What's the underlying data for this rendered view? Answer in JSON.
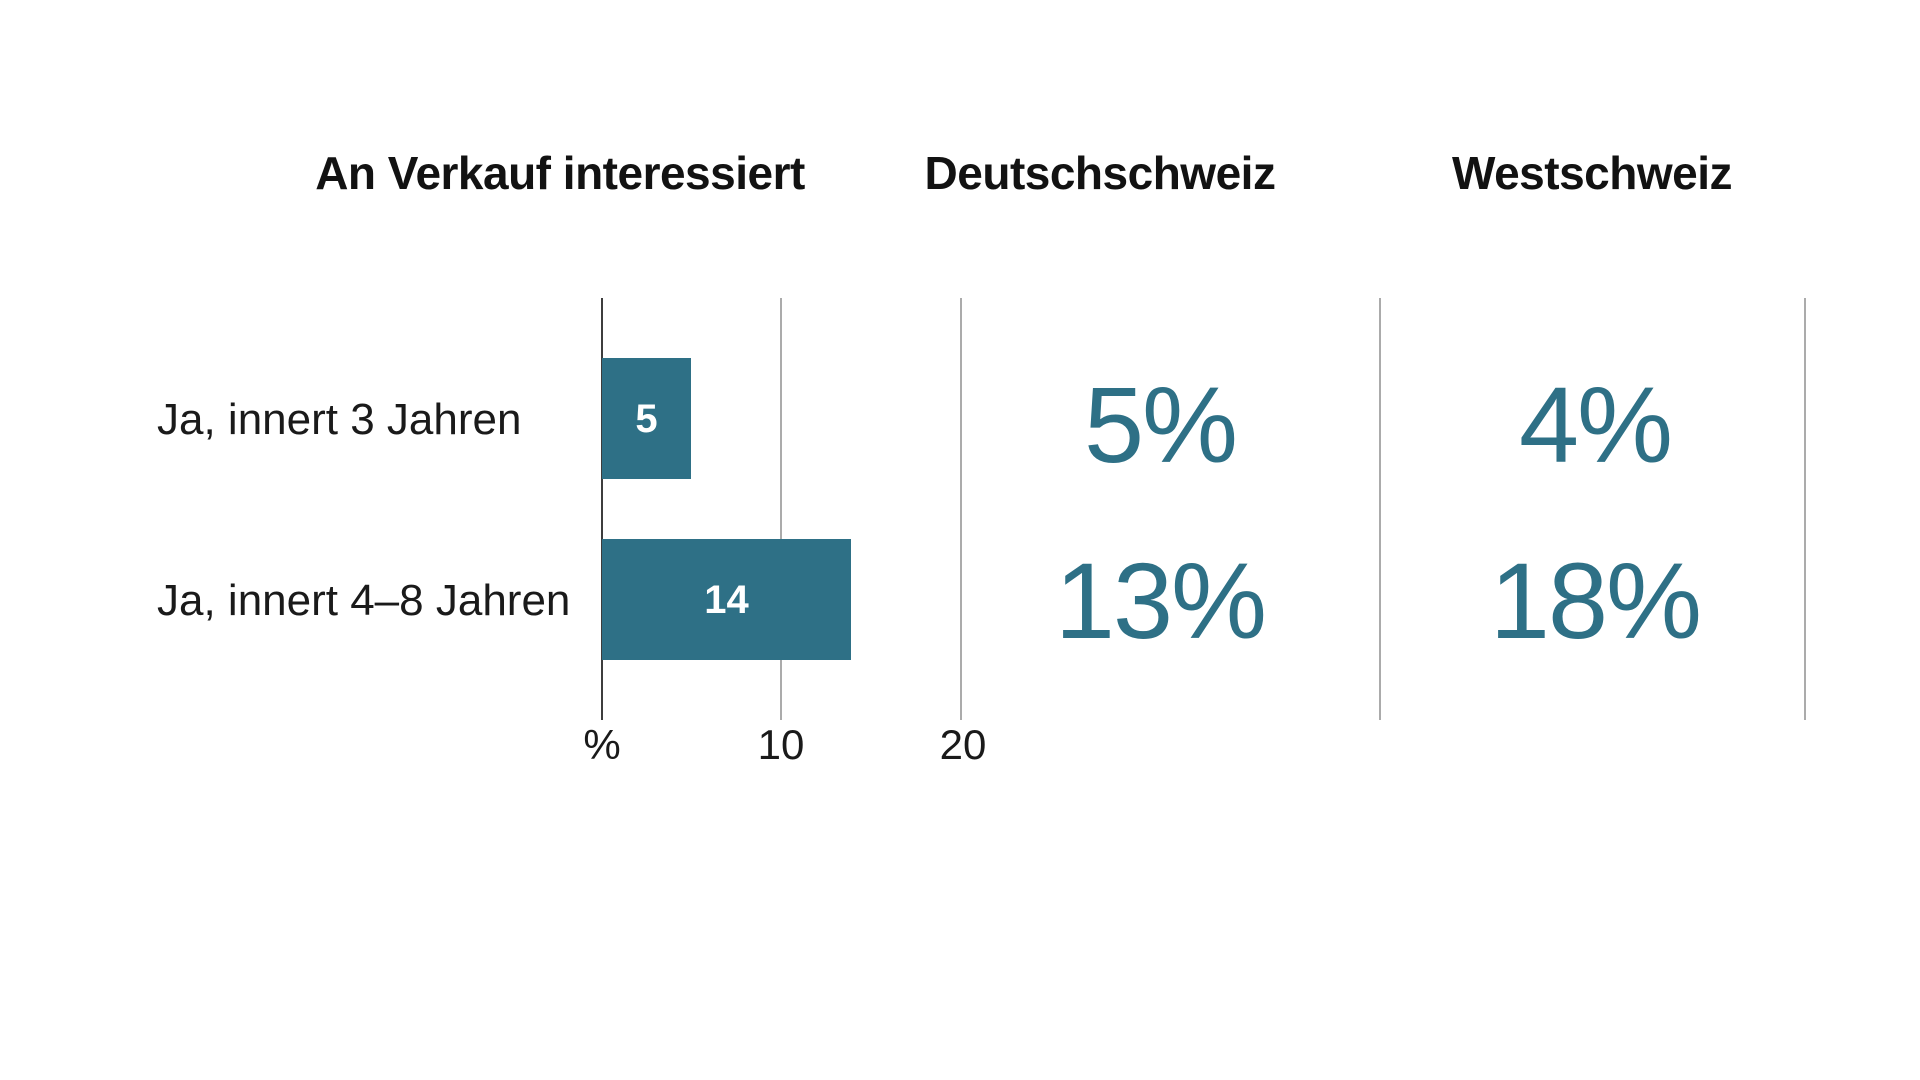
{
  "headers": {
    "chart": "An Verkauf interessiert",
    "col_de": "Deutschschweiz",
    "col_west": "Westschweiz"
  },
  "rows": [
    {
      "label": "Ja, innert 3 Jahren",
      "bar_label": "5",
      "de": "5%",
      "west": "4%"
    },
    {
      "label": "Ja, innert 4–8 Jahren",
      "bar_label": "14",
      "de": "13%",
      "west": "18%"
    }
  ],
  "axis": {
    "ticks": [
      "%",
      "10",
      "20"
    ]
  },
  "colors": {
    "accent_teal": "#2e7086",
    "bar_value_text": "#ffffff",
    "grid_line": "#ababab",
    "zero_axis_line": "#3d3d3d",
    "text": "#121212"
  },
  "chart_data": {
    "type": "bar",
    "orientation": "horizontal",
    "title": "An Verkauf interessiert",
    "categories": [
      "Ja, innert 3 Jahren",
      "Ja, innert 4–8 Jahren"
    ],
    "series": [
      {
        "name": "An Verkauf interessiert",
        "values": [
          5,
          14
        ],
        "unit": "%"
      },
      {
        "name": "Deutschschweiz",
        "values": [
          5,
          13
        ],
        "unit": "%"
      },
      {
        "name": "Westschweiz",
        "values": [
          4,
          18
        ],
        "unit": "%"
      }
    ],
    "xlabel": "%",
    "xticks": [
      0,
      10,
      20
    ],
    "xtick_labels": [
      "%",
      "10",
      "20"
    ],
    "xlim": [
      0,
      25
    ],
    "grid": true,
    "legend": "none",
    "bar_color": "#2e7086",
    "value_labels": "inside-white"
  }
}
